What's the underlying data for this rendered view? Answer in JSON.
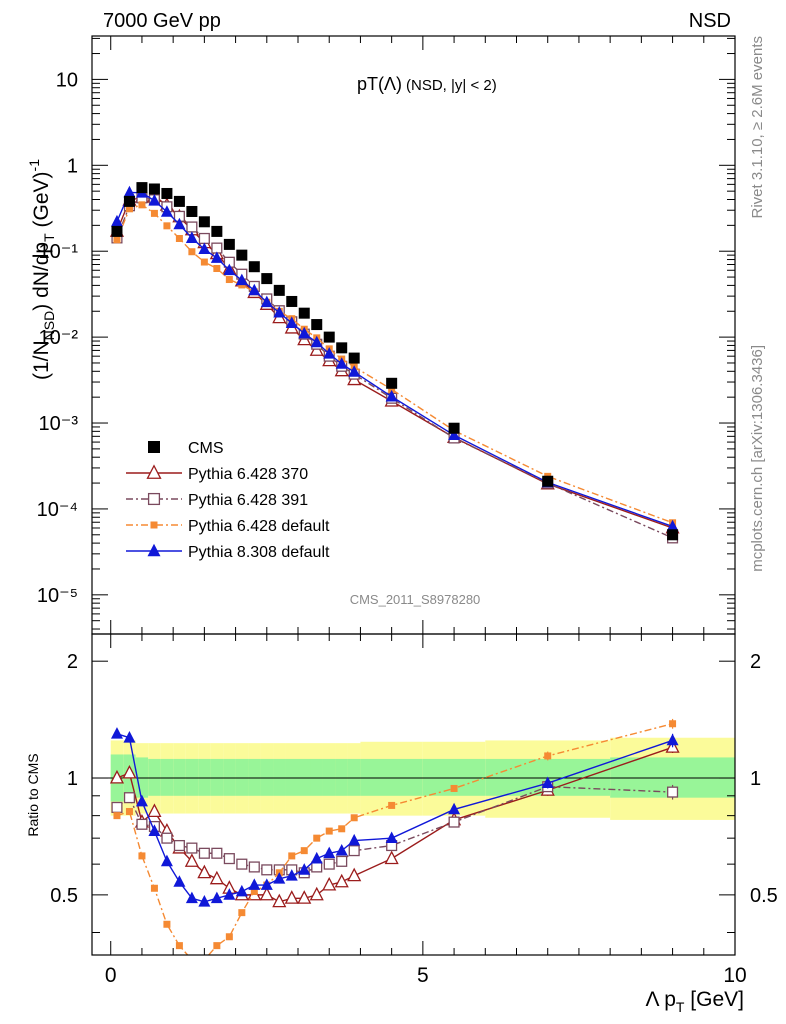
{
  "header": {
    "left": "7000 GeV pp",
    "right": "NSD"
  },
  "side_text": {
    "top": "Rivet 3.1.10, ≥ 2.6M events",
    "bottom": "mcplots.cern.ch [arXiv:1306.3436]"
  },
  "chart_data": {
    "type": "scatter",
    "title": "pT(Λ) (NSD, |y| < 2)",
    "title_main": "pT(Λ)",
    "title_sub": "(NSD, |y| < 2)",
    "watermark": "CMS_2011_S8978280",
    "xlabel": "Λ p_T [GeV]",
    "xlabel_parts": [
      "Λ p",
      "T",
      " [GeV]"
    ],
    "ylabel": "(1/N_NSD) dN/dp_T (GeV)^-1",
    "ratio_ylabel": "Ratio to CMS",
    "xlim": [
      -0.3,
      10.0
    ],
    "ylim": [
      3.5e-06,
      32
    ],
    "yscale": "log",
    "ratio_ylim": [
      0.35,
      2.35
    ],
    "ratio_yscale": "log",
    "x_ticks": [
      0,
      5,
      10
    ],
    "y_ticks": [
      "10⁻⁵",
      "10⁻⁴",
      "10⁻³",
      "10⁻²",
      "10⁻¹",
      "1",
      "10"
    ],
    "ratio_ticks": [
      0.5,
      1,
      2
    ],
    "legend_position": "lower-left",
    "x": [
      0.1,
      0.3,
      0.5,
      0.7,
      0.9,
      1.1,
      1.3,
      1.5,
      1.7,
      1.9,
      2.1,
      2.3,
      2.5,
      2.7,
      2.9,
      3.1,
      3.3,
      3.5,
      3.7,
      3.9,
      4.5,
      5.5,
      7.0,
      9.0
    ],
    "data": {
      "name": "CMS",
      "values": [
        0.17,
        0.38,
        0.55,
        0.53,
        0.47,
        0.38,
        0.29,
        0.22,
        0.17,
        0.12,
        0.09,
        0.066,
        0.048,
        0.035,
        0.026,
        0.019,
        0.014,
        0.01,
        0.0075,
        0.0057,
        0.0029,
        0.00087,
        0.00021,
        5e-05
      ]
    },
    "data_band": {
      "x_edges": [
        0.0,
        0.2,
        0.4,
        0.6,
        0.8,
        1.0,
        1.2,
        1.4,
        1.6,
        1.8,
        2.0,
        2.2,
        2.4,
        2.6,
        2.8,
        3.0,
        3.2,
        3.4,
        3.6,
        3.8,
        4.0,
        5.0,
        6.0,
        8.0,
        10.0
      ],
      "stat_lo": [
        0.87,
        0.87,
        0.89,
        0.9,
        0.9,
        0.9,
        0.9,
        0.9,
        0.9,
        0.9,
        0.9,
        0.9,
        0.9,
        0.9,
        0.9,
        0.9,
        0.9,
        0.9,
        0.9,
        0.9,
        0.9,
        0.9,
        0.9,
        0.89
      ],
      "stat_hi": [
        1.15,
        1.15,
        1.13,
        1.12,
        1.12,
        1.12,
        1.12,
        1.12,
        1.12,
        1.12,
        1.12,
        1.12,
        1.12,
        1.12,
        1.12,
        1.12,
        1.12,
        1.12,
        1.12,
        1.12,
        1.12,
        1.12,
        1.12,
        1.13
      ],
      "tot_lo": [
        0.8,
        0.8,
        0.81,
        0.81,
        0.81,
        0.81,
        0.81,
        0.81,
        0.81,
        0.81,
        0.81,
        0.81,
        0.81,
        0.81,
        0.81,
        0.81,
        0.81,
        0.81,
        0.81,
        0.81,
        0.8,
        0.8,
        0.79,
        0.78
      ],
      "tot_hi": [
        1.25,
        1.25,
        1.23,
        1.23,
        1.23,
        1.23,
        1.23,
        1.23,
        1.23,
        1.23,
        1.23,
        1.23,
        1.23,
        1.23,
        1.23,
        1.23,
        1.23,
        1.23,
        1.23,
        1.23,
        1.24,
        1.24,
        1.25,
        1.27
      ]
    },
    "series": [
      {
        "name": "Pythia 6.428 370",
        "color": "#9b1c1c",
        "marker": "triangle-open",
        "line": "solid",
        "ratio": [
          1.0,
          1.03,
          0.77,
          0.82,
          0.73,
          0.66,
          0.61,
          0.57,
          0.55,
          0.52,
          0.5,
          0.5,
          0.5,
          0.48,
          0.49,
          0.49,
          0.5,
          0.53,
          0.54,
          0.56,
          0.62,
          0.78,
          0.93,
          1.2
        ]
      },
      {
        "name": "Pythia 6.428 391",
        "color": "#7a4a5e",
        "marker": "square-open",
        "line": "dashdot",
        "ratio": [
          0.84,
          0.89,
          0.76,
          0.75,
          0.7,
          0.67,
          0.66,
          0.64,
          0.64,
          0.62,
          0.6,
          0.59,
          0.58,
          0.58,
          0.58,
          0.57,
          0.59,
          0.6,
          0.61,
          0.65,
          0.67,
          0.77,
          0.95,
          0.92
        ]
      },
      {
        "name": "Pythia 6.428 default",
        "color": "#f58a33",
        "marker": "square-filled",
        "line": "dashdot",
        "ratio": [
          0.8,
          0.82,
          0.63,
          0.52,
          0.42,
          0.37,
          0.34,
          0.34,
          0.37,
          0.39,
          0.45,
          0.51,
          0.53,
          0.57,
          0.63,
          0.65,
          0.7,
          0.73,
          0.74,
          0.79,
          0.85,
          0.94,
          1.14,
          1.38
        ]
      },
      {
        "name": "Pythia 8.308 default",
        "color": "#1018d8",
        "marker": "triangle-filled",
        "line": "solid",
        "ratio": [
          1.3,
          1.27,
          0.87,
          0.73,
          0.61,
          0.54,
          0.49,
          0.48,
          0.49,
          0.5,
          0.51,
          0.53,
          0.53,
          0.55,
          0.56,
          0.58,
          0.62,
          0.64,
          0.65,
          0.69,
          0.7,
          0.83,
          0.97,
          1.25
        ]
      }
    ],
    "endpoint_errors": {
      "x": 9.0,
      "ratio_err": [
        0.04,
        0.04,
        0.04,
        0.05
      ],
      "x7_ratio_err": [
        0.03,
        0.0,
        0.03,
        0.03
      ]
    }
  }
}
